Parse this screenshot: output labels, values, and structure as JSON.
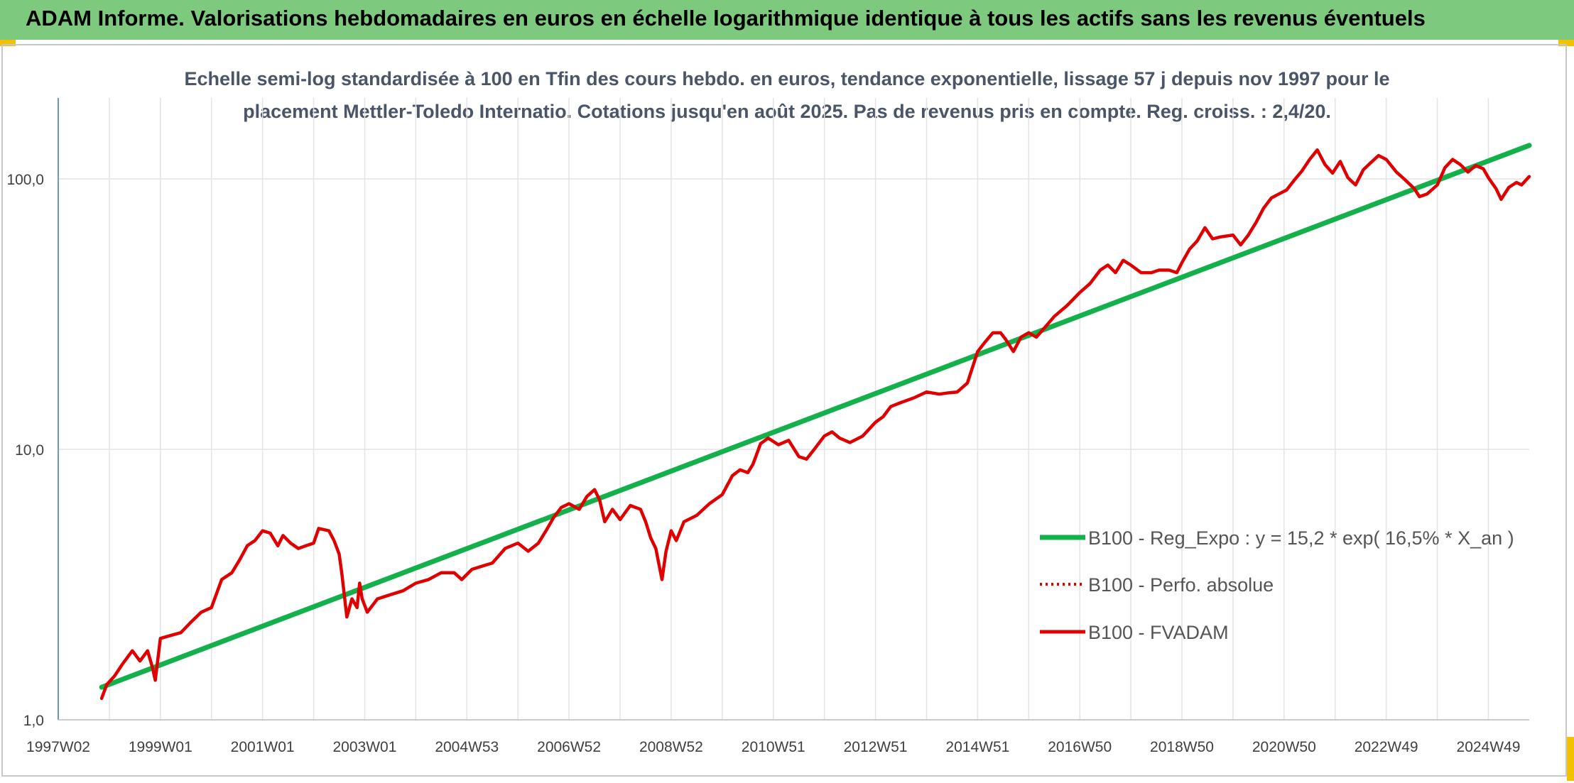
{
  "header": {
    "title": "ADAM Informe. Valorisations hebdomadaires en euros en échelle logarithmique identique à tous les actifs sans les revenus éventuels"
  },
  "chart_data": {
    "type": "line",
    "title_line1": "Echelle semi-log standardisée à 100 en Tfin des cours hebdo. en euros, tendance exponentielle, lissage 57 j depuis nov 1997 pour le",
    "title_line2": "placement Mettler-Toledo Internatio. Cotations jusqu'en août 2025. Pas de revenus pris en compte. Reg. croiss. : 2,4/20.",
    "y_scale": "log",
    "ylim": [
      1,
      180
    ],
    "y_ticks": [
      1,
      10,
      100
    ],
    "y_tick_labels": [
      "1,0",
      "10,0",
      "100,0"
    ],
    "xlim": [
      1997.0,
      2025.8
    ],
    "x_ticks": [
      1997.0,
      1999.0,
      2001.0,
      2003.0,
      2005.0,
      2007.0,
      2009.0,
      2011.0,
      2013.0,
      2015.0,
      2017.0,
      2019.0,
      2021.0,
      2023.0,
      2025.0
    ],
    "x_tick_labels": [
      "1997W02",
      "1999W01",
      "2001W01",
      "2003W01",
      "2004W53",
      "2006W52",
      "2008W52",
      "2010W51",
      "2012W51",
      "2014W51",
      "2016W50",
      "2018W50",
      "2020W50",
      "2022W49",
      "2024W49"
    ],
    "grid": {
      "horizontal": true,
      "vertical": true
    },
    "legend_position": "bottom-right",
    "series": [
      {
        "name": "B100 - Reg_Expo : y = 15,2 * exp( 16,5% *  X_an )",
        "color": "#13b04b",
        "style": "solid",
        "points": [
          [
            1997.85,
            1.32
          ],
          [
            2025.8,
            133.0
          ]
        ]
      },
      {
        "name": "B100 - Perfo. absolue",
        "color": "#e00000",
        "style": "dotted",
        "points": []
      },
      {
        "name": "B100 - FVADAM",
        "color": "#e00000",
        "style": "solid",
        "points": [
          [
            1997.85,
            1.2
          ],
          [
            1997.95,
            1.35
          ],
          [
            1998.1,
            1.45
          ],
          [
            1998.25,
            1.6
          ],
          [
            1998.45,
            1.8
          ],
          [
            1998.6,
            1.65
          ],
          [
            1998.75,
            1.8
          ],
          [
            1998.85,
            1.55
          ],
          [
            1998.9,
            1.4
          ],
          [
            1999.0,
            2.0
          ],
          [
            1999.2,
            2.05
          ],
          [
            1999.4,
            2.1
          ],
          [
            1999.6,
            2.3
          ],
          [
            1999.8,
            2.5
          ],
          [
            2000.0,
            2.6
          ],
          [
            2000.2,
            3.3
          ],
          [
            2000.4,
            3.5
          ],
          [
            2000.55,
            3.9
          ],
          [
            2000.7,
            4.4
          ],
          [
            2000.85,
            4.6
          ],
          [
            2001.0,
            5.0
          ],
          [
            2001.15,
            4.9
          ],
          [
            2001.3,
            4.4
          ],
          [
            2001.4,
            4.8
          ],
          [
            2001.55,
            4.5
          ],
          [
            2001.7,
            4.3
          ],
          [
            2001.85,
            4.4
          ],
          [
            2002.0,
            4.5
          ],
          [
            2002.1,
            5.1
          ],
          [
            2002.3,
            5.0
          ],
          [
            2002.4,
            4.6
          ],
          [
            2002.5,
            4.1
          ],
          [
            2002.55,
            3.5
          ],
          [
            2002.6,
            2.9
          ],
          [
            2002.65,
            2.4
          ],
          [
            2002.75,
            2.8
          ],
          [
            2002.85,
            2.6
          ],
          [
            2002.9,
            3.2
          ],
          [
            2002.95,
            2.8
          ],
          [
            2003.05,
            2.5
          ],
          [
            2003.25,
            2.8
          ],
          [
            2003.5,
            2.9
          ],
          [
            2003.75,
            3.0
          ],
          [
            2004.0,
            3.2
          ],
          [
            2004.25,
            3.3
          ],
          [
            2004.5,
            3.5
          ],
          [
            2004.75,
            3.5
          ],
          [
            2004.9,
            3.3
          ],
          [
            2005.1,
            3.6
          ],
          [
            2005.3,
            3.7
          ],
          [
            2005.5,
            3.8
          ],
          [
            2005.75,
            4.3
          ],
          [
            2006.0,
            4.5
          ],
          [
            2006.2,
            4.2
          ],
          [
            2006.4,
            4.5
          ],
          [
            2006.55,
            5.0
          ],
          [
            2006.7,
            5.6
          ],
          [
            2006.85,
            6.1
          ],
          [
            2007.0,
            6.3
          ],
          [
            2007.2,
            6.0
          ],
          [
            2007.35,
            6.7
          ],
          [
            2007.5,
            7.1
          ],
          [
            2007.6,
            6.5
          ],
          [
            2007.7,
            5.4
          ],
          [
            2007.85,
            6.0
          ],
          [
            2008.0,
            5.5
          ],
          [
            2008.2,
            6.2
          ],
          [
            2008.4,
            6.0
          ],
          [
            2008.5,
            5.4
          ],
          [
            2008.6,
            4.7
          ],
          [
            2008.7,
            4.3
          ],
          [
            2008.78,
            3.6
          ],
          [
            2008.82,
            3.3
          ],
          [
            2008.9,
            4.2
          ],
          [
            2009.0,
            5.0
          ],
          [
            2009.1,
            4.6
          ],
          [
            2009.25,
            5.4
          ],
          [
            2009.5,
            5.7
          ],
          [
            2009.75,
            6.3
          ],
          [
            2010.0,
            6.8
          ],
          [
            2010.2,
            8.0
          ],
          [
            2010.35,
            8.4
          ],
          [
            2010.5,
            8.2
          ],
          [
            2010.6,
            8.8
          ],
          [
            2010.75,
            10.5
          ],
          [
            2010.9,
            11.0
          ],
          [
            2011.1,
            10.4
          ],
          [
            2011.3,
            10.8
          ],
          [
            2011.5,
            9.4
          ],
          [
            2011.65,
            9.2
          ],
          [
            2011.8,
            10.0
          ],
          [
            2012.0,
            11.2
          ],
          [
            2012.15,
            11.6
          ],
          [
            2012.3,
            11.0
          ],
          [
            2012.5,
            10.6
          ],
          [
            2012.75,
            11.2
          ],
          [
            2013.0,
            12.6
          ],
          [
            2013.15,
            13.2
          ],
          [
            2013.3,
            14.4
          ],
          [
            2013.5,
            14.9
          ],
          [
            2013.75,
            15.5
          ],
          [
            2014.0,
            16.3
          ],
          [
            2014.25,
            16.0
          ],
          [
            2014.45,
            16.2
          ],
          [
            2014.6,
            16.3
          ],
          [
            2014.8,
            17.6
          ],
          [
            2015.0,
            23.0
          ],
          [
            2015.15,
            25.0
          ],
          [
            2015.3,
            27.0
          ],
          [
            2015.45,
            27.0
          ],
          [
            2015.55,
            25.5
          ],
          [
            2015.7,
            23.0
          ],
          [
            2015.85,
            26.0
          ],
          [
            2016.0,
            27.0
          ],
          [
            2016.15,
            26.0
          ],
          [
            2016.3,
            28.0
          ],
          [
            2016.5,
            31.0
          ],
          [
            2016.75,
            34.0
          ],
          [
            2017.0,
            38.0
          ],
          [
            2017.2,
            41.0
          ],
          [
            2017.4,
            46.0
          ],
          [
            2017.55,
            48.0
          ],
          [
            2017.7,
            45.0
          ],
          [
            2017.85,
            50.0
          ],
          [
            2018.0,
            48.0
          ],
          [
            2018.2,
            45.0
          ],
          [
            2018.4,
            45.0
          ],
          [
            2018.55,
            46.0
          ],
          [
            2018.75,
            46.0
          ],
          [
            2018.9,
            45.0
          ],
          [
            2019.0,
            49.0
          ],
          [
            2019.15,
            55.0
          ],
          [
            2019.3,
            59.0
          ],
          [
            2019.45,
            66.0
          ],
          [
            2019.6,
            60.0
          ],
          [
            2019.75,
            61.0
          ],
          [
            2020.0,
            62.0
          ],
          [
            2020.15,
            57.0
          ],
          [
            2020.3,
            62.0
          ],
          [
            2020.45,
            69.0
          ],
          [
            2020.6,
            78.0
          ],
          [
            2020.75,
            85.0
          ],
          [
            2020.9,
            88.0
          ],
          [
            2021.05,
            91.0
          ],
          [
            2021.2,
            99.0
          ],
          [
            2021.35,
            107.0
          ],
          [
            2021.5,
            118.0
          ],
          [
            2021.65,
            128.0
          ],
          [
            2021.8,
            113.0
          ],
          [
            2021.95,
            105.0
          ],
          [
            2022.1,
            116.0
          ],
          [
            2022.25,
            101.0
          ],
          [
            2022.4,
            95.0
          ],
          [
            2022.55,
            108.0
          ],
          [
            2022.7,
            115.0
          ],
          [
            2022.85,
            122.0
          ],
          [
            2023.0,
            118.0
          ],
          [
            2023.2,
            106.0
          ],
          [
            2023.35,
            100.0
          ],
          [
            2023.55,
            92.0
          ],
          [
            2023.65,
            86.0
          ],
          [
            2023.8,
            88.0
          ],
          [
            2024.0,
            95.0
          ],
          [
            2024.15,
            110.0
          ],
          [
            2024.3,
            118.0
          ],
          [
            2024.45,
            113.0
          ],
          [
            2024.6,
            106.0
          ],
          [
            2024.75,
            112.0
          ],
          [
            2024.9,
            109.0
          ],
          [
            2025.0,
            101.0
          ],
          [
            2025.15,
            92.0
          ],
          [
            2025.25,
            84.0
          ],
          [
            2025.4,
            93.0
          ],
          [
            2025.55,
            97.0
          ],
          [
            2025.65,
            95.0
          ],
          [
            2025.8,
            102.0
          ]
        ]
      }
    ]
  }
}
